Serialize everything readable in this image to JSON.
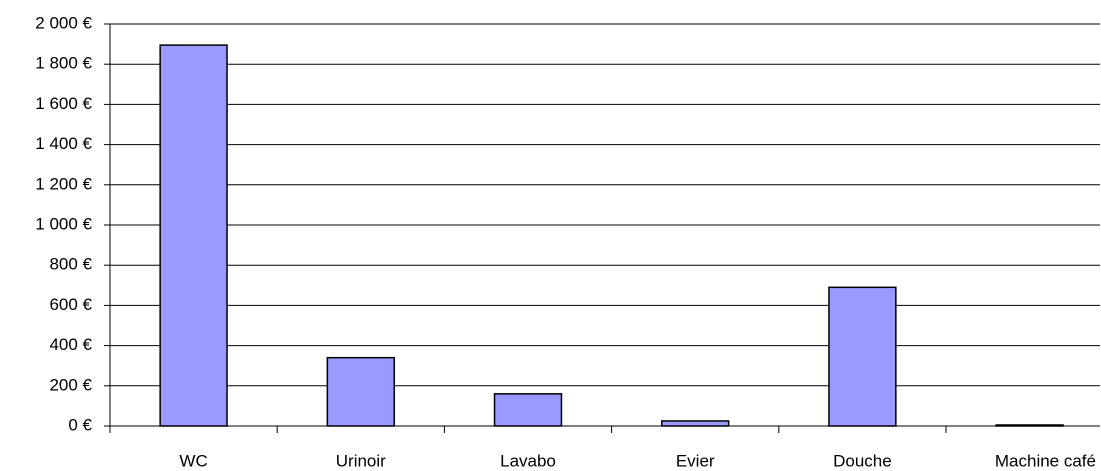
{
  "chart_data": {
    "type": "bar",
    "categories": [
      "WC",
      "Urinoir",
      "Lavabo",
      "Evier",
      "Douche",
      "Machine café"
    ],
    "values": [
      1895,
      340,
      160,
      25,
      690,
      5
    ],
    "color": "#9999ff",
    "ylim": [
      0,
      2000
    ],
    "yticks": [
      {
        "value": 0,
        "label": "0 €"
      },
      {
        "value": 200,
        "label": "200 €"
      },
      {
        "value": 400,
        "label": "400 €"
      },
      {
        "value": 600,
        "label": "600 €"
      },
      {
        "value": 800,
        "label": "800 €"
      },
      {
        "value": 1000,
        "label": "1 000 €"
      },
      {
        "value": 1200,
        "label": "1 200 €"
      },
      {
        "value": 1400,
        "label": "1 400 €"
      },
      {
        "value": 1600,
        "label": "1 600 €"
      },
      {
        "value": 1800,
        "label": "1 800 €"
      },
      {
        "value": 2000,
        "label": "2 000 €"
      }
    ],
    "grid": true
  }
}
